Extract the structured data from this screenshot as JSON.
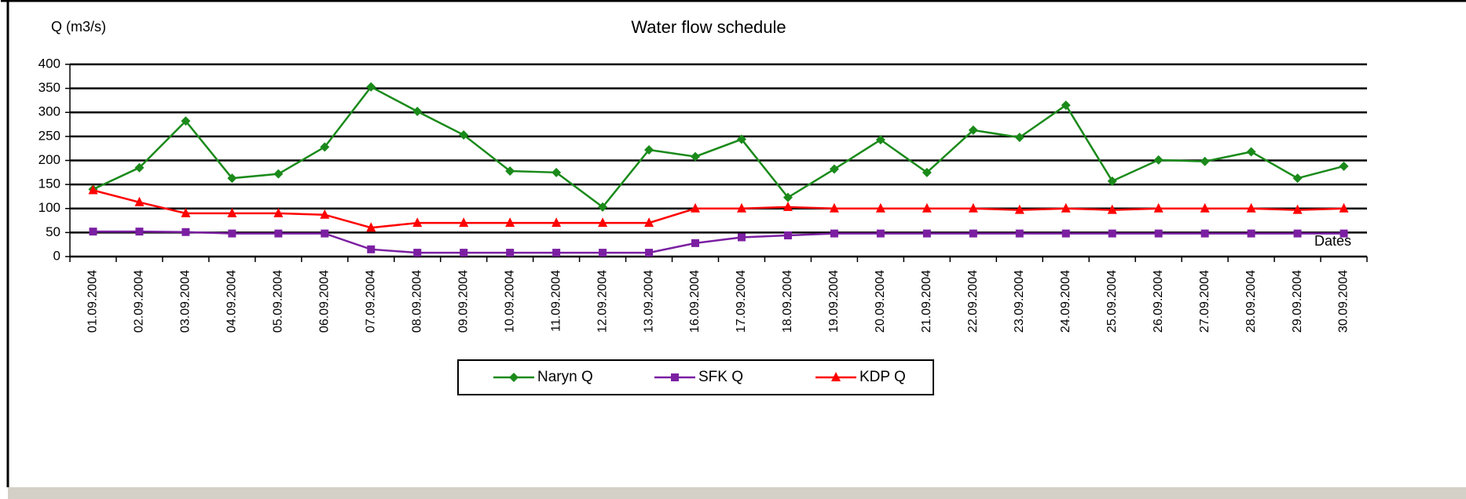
{
  "chart_data": {
    "type": "line",
    "title": "Water flow schedule",
    "ylabel": "Q (m3/s)",
    "xlabel": "Dates",
    "categories": [
      "01.09.2004",
      "02.09.2004",
      "03.09.2004",
      "04.09.2004",
      "05.09.2004",
      "06.09.2004",
      "07.09.2004",
      "08.09.2004",
      "09.09.2004",
      "10.09.2004",
      "11.09.2004",
      "12.09.2004",
      "13.09.2004",
      "16.09.2004",
      "17.09.2004",
      "18.09.2004",
      "19.09.2004",
      "20.09.2004",
      "21.09.2004",
      "22.09.2004",
      "23.09.2004",
      "24.09.2004",
      "25.09.2004",
      "26.09.2004",
      "27.09.2004",
      "28.09.2004",
      "29.09.2004",
      "30.09.2004"
    ],
    "series": [
      {
        "name": "Naryn Q",
        "color": "#1a8a1a",
        "marker": "diamond",
        "values": [
          140,
          185,
          282,
          163,
          172,
          228,
          353,
          302,
          253,
          178,
          175,
          103,
          222,
          208,
          244,
          123,
          182,
          243,
          175,
          263,
          248,
          315,
          157,
          201,
          198,
          218,
          163,
          188
        ]
      },
      {
        "name": "SFK Q",
        "color": "#7b1fa2",
        "marker": "square",
        "values": [
          52,
          52,
          51,
          48,
          48,
          48,
          15,
          8,
          8,
          8,
          8,
          8,
          8,
          28,
          40,
          44,
          48,
          48,
          48,
          48,
          48,
          48,
          48,
          48,
          48,
          48,
          48,
          48
        ]
      },
      {
        "name": "KDP Q",
        "color": "#ff0000",
        "marker": "triangle",
        "values": [
          138,
          113,
          90,
          90,
          90,
          87,
          60,
          70,
          70,
          70,
          70,
          70,
          70,
          100,
          100,
          103,
          100,
          100,
          100,
          100,
          97,
          100,
          97,
          100,
          100,
          100,
          97,
          100
        ]
      }
    ],
    "ylim": [
      0,
      400
    ],
    "yticks": [
      0,
      50,
      100,
      150,
      200,
      250,
      300,
      350,
      400
    ],
    "grid": true,
    "legend": "bottom"
  }
}
